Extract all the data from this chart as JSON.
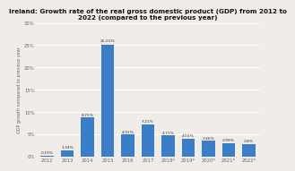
{
  "title": "Ireland: Growth rate of the real gross domestic product (GDP) from 2012 to\n2022 (compared to the previous year)",
  "ylabel": "GDP growth compared to previous year",
  "categories": [
    "2012",
    "2013",
    "2014",
    "2015",
    "2016",
    "2017",
    "2018*",
    "2019*",
    "2020*",
    "2021*",
    "2022*"
  ],
  "values": [
    0.19,
    1.34,
    8.75,
    25.01,
    4.91,
    7.21,
    4.71,
    4.01,
    3.46,
    2.99,
    2.8
  ],
  "bar_color": "#3a7ec8",
  "value_labels": [
    "0.19%",
    "1.34%",
    "8.75%",
    "25.01%",
    "4.91%",
    "7.21%",
    "4.71%",
    "4.01%",
    "3.46%",
    "2.99%",
    "2.8%"
  ],
  "ylim": [
    0,
    30
  ],
  "yticks": [
    0,
    5,
    10,
    15,
    20,
    25,
    30
  ],
  "ytick_labels": [
    "0%",
    "5%",
    "10%",
    "15%",
    "20%",
    "25%",
    "30%"
  ],
  "background_color": "#f0ede8",
  "grid_color": "#ffffff",
  "title_fontsize": 5.2,
  "label_fontsize": 3.5,
  "tick_fontsize": 3.8,
  "bar_value_fontsize": 3.2
}
